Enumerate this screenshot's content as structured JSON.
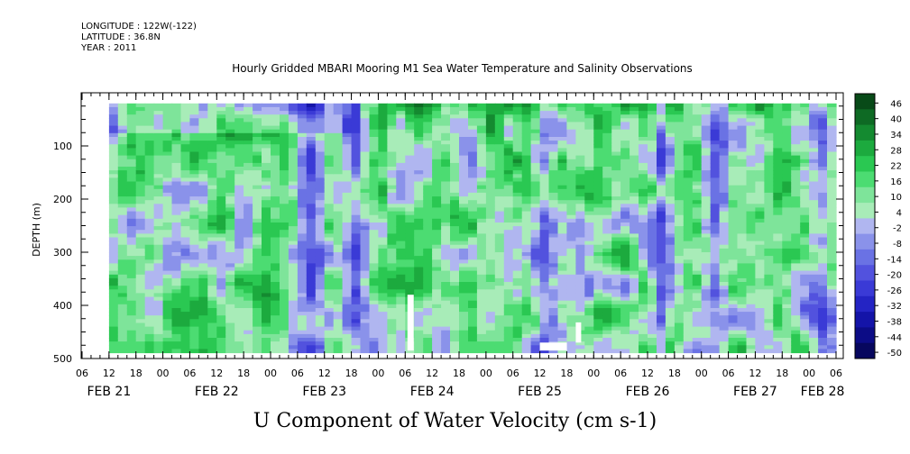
{
  "header": {
    "longitude": "LONGITUDE : 122W(-122)",
    "latitude": "LATITUDE : 36.8N",
    "year": "YEAR : 2011"
  },
  "chart_data": {
    "type": "heatmap",
    "title": "Hourly Gridded MBARI Mooring M1 Sea Water Temperature and Salinity Observations",
    "subtitle": "U Component of Water Velocity (cm s-1)",
    "ylabel": "DEPTH (m)",
    "xlabel": "",
    "ylim": [
      500,
      0
    ],
    "y_ticks": [
      100,
      200,
      300,
      400,
      500
    ],
    "x_hour_ticks": [
      "06",
      "12",
      "18",
      "00",
      "06",
      "12",
      "18",
      "00",
      "06",
      "12",
      "18",
      "00",
      "06",
      "12",
      "18",
      "00",
      "06",
      "12",
      "18",
      "00",
      "06",
      "12",
      "18",
      "00",
      "06",
      "12",
      "18",
      "00",
      "06"
    ],
    "x_day_labels": [
      "FEB 21",
      "FEB 22",
      "FEB 23",
      "FEB 24",
      "FEB 25",
      "FEB 26",
      "FEB 27",
      "FEB 28"
    ],
    "data_start": "FEB 21 12:00",
    "data_end": "FEB 28 06:00",
    "depth_range": [
      20,
      485
    ],
    "colorbar_levels": [
      "46",
      "40",
      "34",
      "28",
      "22",
      "16",
      "10",
      "4",
      "-2",
      "-8",
      "-14",
      "-20",
      "-26",
      "-32",
      "-38",
      "-44",
      "-50"
    ],
    "colorbar_range": [
      -50,
      50
    ],
    "colors": {
      "strong_positive": "#0a4a1a",
      "positive": "#2ecc5a",
      "weak_positive": "#9ee8b0",
      "weak_negative": "#aab0ee",
      "negative": "#6f78e8",
      "strong_negative": "#0a0a6e"
    }
  }
}
